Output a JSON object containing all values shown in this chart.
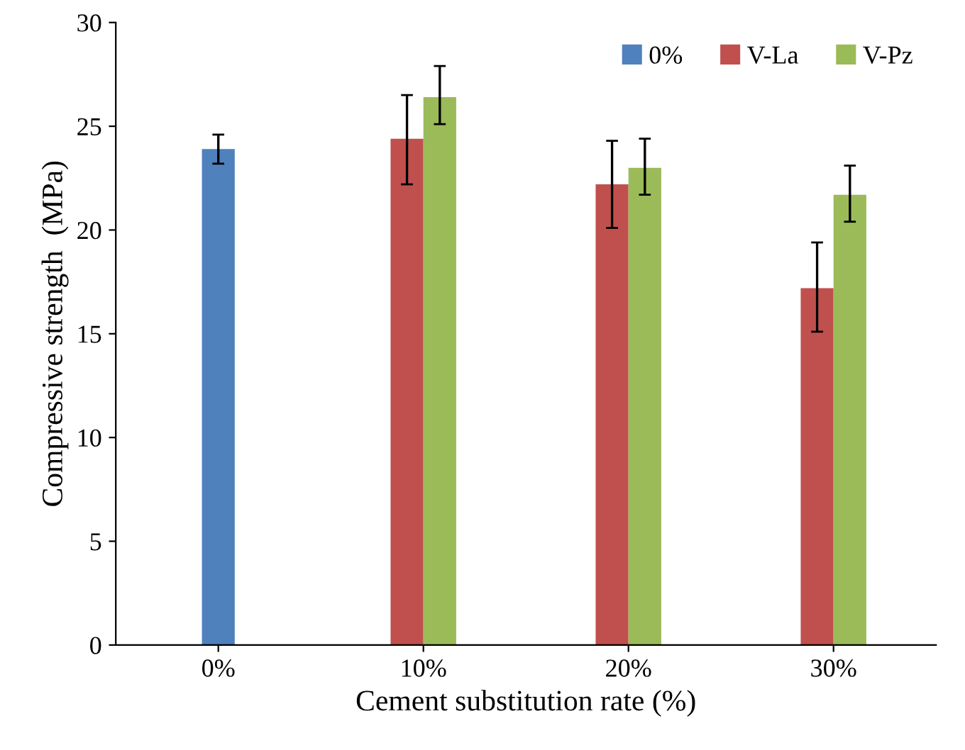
{
  "chart_data": {
    "type": "bar",
    "xlabel": "Cement substitution rate (%)",
    "ylabel": "Compressive strength  (MPa)",
    "categories": [
      "0%",
      "10%",
      "20%",
      "30%"
    ],
    "series": [
      {
        "name": "0%",
        "color": "#4f81bd",
        "values": [
          23.9,
          null,
          null,
          null
        ],
        "errors": [
          [
            23.2,
            24.6
          ],
          null,
          null,
          null
        ]
      },
      {
        "name": "V-La",
        "color": "#c0504d",
        "values": [
          null,
          24.4,
          22.2,
          17.2
        ],
        "errors": [
          null,
          [
            22.2,
            26.5
          ],
          [
            20.1,
            24.3
          ],
          [
            15.1,
            19.4
          ]
        ]
      },
      {
        "name": "V-Pz",
        "color": "#9bbb59",
        "values": [
          null,
          26.4,
          23.0,
          21.7
        ],
        "errors": [
          null,
          [
            25.1,
            27.9
          ],
          [
            21.7,
            24.4
          ],
          [
            20.4,
            23.1
          ]
        ]
      }
    ],
    "ylim": [
      0,
      30
    ],
    "yticks": [
      0,
      5,
      10,
      15,
      20,
      25,
      30
    ],
    "grid": false,
    "legend": "top right"
  }
}
